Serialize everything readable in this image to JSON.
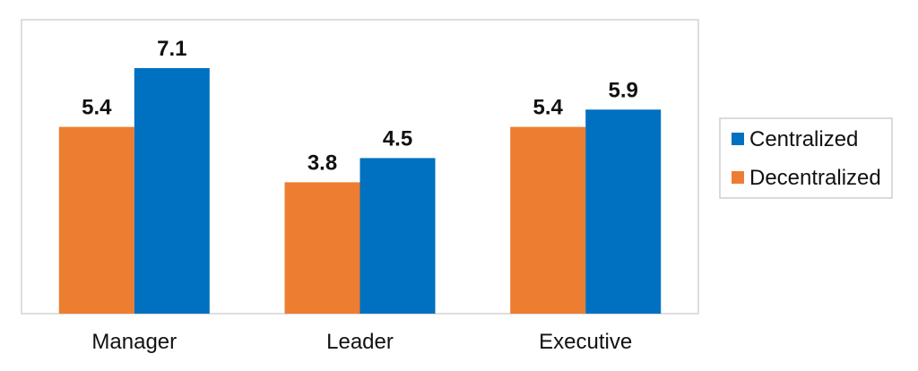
{
  "chart_data": {
    "type": "bar",
    "categories": [
      "Manager",
      "Leader",
      "Executive"
    ],
    "series": [
      {
        "name": "Decentralized",
        "color": "#ED7D31",
        "values": [
          5.4,
          3.8,
          5.4
        ]
      },
      {
        "name": "Centralized",
        "color": "#0070C0",
        "values": [
          7.1,
          4.5,
          5.9
        ]
      }
    ],
    "legend": {
      "placement": "right",
      "order": [
        "Centralized",
        "Decentralized"
      ]
    },
    "ylim": [
      0,
      8.5
    ],
    "grid": false,
    "title": "",
    "xlabel": "",
    "ylabel": ""
  }
}
